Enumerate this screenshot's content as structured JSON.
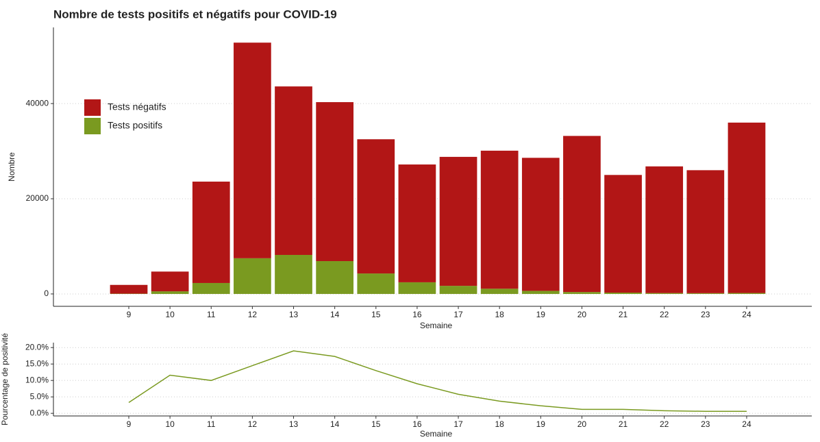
{
  "chart_data": [
    {
      "type": "stacked-bar",
      "title": "Nombre de tests positifs et négatifs pour COVID-19",
      "x_label": "Semaine",
      "y_label": "Nombre",
      "categories": [
        "9",
        "10",
        "11",
        "12",
        "13",
        "14",
        "15",
        "16",
        "17",
        "18",
        "19",
        "20",
        "21",
        "22",
        "23",
        "24"
      ],
      "series": [
        {
          "name": "Tests négatifs",
          "color": "#b21616",
          "values": [
            1840,
            4150,
            21300,
            45300,
            35400,
            33400,
            28200,
            24750,
            27100,
            29000,
            27950,
            32800,
            24720,
            26610,
            25840,
            35800
          ]
        },
        {
          "name": "Tests positifs",
          "color": "#7a9a20",
          "values": [
            60,
            550,
            2300,
            7500,
            8200,
            6900,
            4300,
            2450,
            1700,
            1100,
            650,
            400,
            280,
            190,
            160,
            200
          ]
        }
      ],
      "ylim": [
        -2600,
        56000
      ],
      "yticks": [
        0,
        20000,
        40000
      ],
      "grid": true,
      "legend": "top-left"
    },
    {
      "type": "line",
      "x_label": "Semaine",
      "y_label": "Pourcentage de positivité",
      "categories": [
        "9",
        "10",
        "11",
        "12",
        "13",
        "14",
        "15",
        "16",
        "17",
        "18",
        "19",
        "20",
        "21",
        "22",
        "23",
        "24"
      ],
      "series": [
        {
          "name": "Pourcentage de positivité",
          "color": "#7a9a20",
          "values": [
            3.3,
            11.6,
            10.0,
            14.5,
            19.0,
            17.3,
            13.0,
            9.0,
            5.8,
            3.7,
            2.3,
            1.2,
            1.2,
            0.8,
            0.6,
            0.6
          ]
        }
      ],
      "ylim": [
        -0.8,
        21.5
      ],
      "yticks": [
        {
          "value": 0,
          "label": "0.0%"
        },
        {
          "value": 5,
          "label": "5.0%"
        },
        {
          "value": 10,
          "label": "10.0%"
        },
        {
          "value": 15,
          "label": "15.0%"
        },
        {
          "value": 20,
          "label": "20.0%"
        }
      ],
      "grid": true
    }
  ]
}
